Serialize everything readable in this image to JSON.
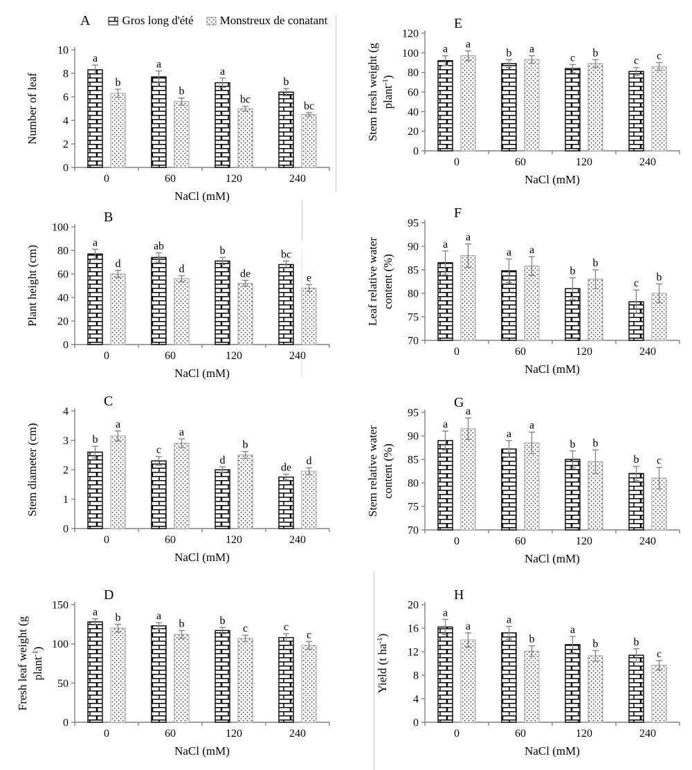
{
  "page": {
    "background": "#ffffff"
  },
  "legend": {
    "items": [
      {
        "label": "Gros long d'été",
        "pattern": "brick"
      },
      {
        "label": "Monstreux de conatant",
        "pattern": "dots"
      }
    ]
  },
  "styles": {
    "series1_fill": "brick-pattern",
    "series1_outline": "#000000",
    "series2_fill": "dots-pattern",
    "series2_outline": "#9a9a9a",
    "error_bar_color": "#7f7f7f",
    "axis_color": "#808080",
    "text_color": "#000000"
  },
  "chart_data": {
    "type": "bar",
    "categories": [
      "0",
      "60",
      "120",
      "240"
    ],
    "xlabel": "NaCl (mM)",
    "series_names": [
      "Gros long d'été",
      "Monstreux de conatant"
    ],
    "legend_position": "top-left",
    "grid": false,
    "error_bars": true,
    "panels": [
      {
        "label": "A",
        "show_letter": false,
        "ylabel_lines": [
          "Number of leaf"
        ],
        "ylim": [
          0,
          10
        ],
        "yticks": [
          0,
          2,
          4,
          6,
          8,
          10
        ],
        "series": [
          {
            "name": "Gros long d'été",
            "values": [
              8.3,
              7.7,
              7.2,
              6.4
            ],
            "errors": [
              0.4,
              0.5,
              0.4,
              0.3
            ],
            "letters": [
              "a",
              "a",
              "a",
              "b"
            ]
          },
          {
            "name": "Monstreux de conatant",
            "values": [
              6.3,
              5.6,
              5.0,
              4.5
            ],
            "errors": [
              0.35,
              0.3,
              0.2,
              0.15
            ],
            "letters": [
              "b",
              "b",
              "bc",
              "bc"
            ]
          }
        ]
      },
      {
        "label": "B",
        "show_letter": true,
        "ylabel_lines": [
          "Plant height (cm)"
        ],
        "ylim": [
          0,
          100
        ],
        "yticks": [
          0,
          20,
          40,
          60,
          80,
          100
        ],
        "series": [
          {
            "name": "Gros long d'été",
            "values": [
              77,
              74,
              71,
              68
            ],
            "errors": [
              4,
              4,
              3,
              3
            ],
            "letters": [
              "a",
              "ab",
              "b",
              "bc"
            ]
          },
          {
            "name": "Monstreux de conatant",
            "values": [
              60,
              56,
              52,
              48
            ],
            "errors": [
              3,
              2.5,
              2.5,
              3
            ],
            "letters": [
              "d",
              "d",
              "de",
              "e"
            ]
          }
        ]
      },
      {
        "label": "C",
        "show_letter": true,
        "ylabel_lines": [
          "Stem diameter (cm)"
        ],
        "ylim": [
          0,
          4
        ],
        "yticks": [
          0,
          1,
          2,
          3,
          4
        ],
        "series": [
          {
            "name": "Gros long d'été",
            "values": [
              2.6,
              2.3,
              2.0,
              1.75
            ],
            "errors": [
              0.2,
              0.15,
              0.1,
              0.1
            ],
            "letters": [
              "b",
              "c",
              "d",
              "de"
            ]
          },
          {
            "name": "Monstreux de conatant",
            "values": [
              3.15,
              2.9,
              2.5,
              1.95
            ],
            "errors": [
              0.17,
              0.15,
              0.12,
              0.12
            ],
            "letters": [
              "a",
              "a",
              "b",
              "d"
            ]
          }
        ]
      },
      {
        "label": "D",
        "show_letter": true,
        "ylabel_lines": [
          "Fresh leaf weight (g",
          "plant⁻¹)"
        ],
        "ylim": [
          0,
          150
        ],
        "yticks": [
          0,
          50,
          100,
          150
        ],
        "series": [
          {
            "name": "Gros long d'été",
            "values": [
              128,
              123,
              117,
              108
            ],
            "errors": [
              4,
              4,
              4,
              5
            ],
            "letters": [
              "a",
              "a",
              "b",
              "c"
            ]
          },
          {
            "name": "Monstreux de conatant",
            "values": [
              120,
              112,
              107,
              98
            ],
            "errors": [
              5,
              5,
              4,
              5
            ],
            "letters": [
              "b",
              "b",
              "c",
              "c"
            ]
          }
        ]
      },
      {
        "label": "E",
        "show_letter": true,
        "ylabel_lines": [
          "Stem fresh weight (g",
          "plant⁻¹)"
        ],
        "ylim": [
          0,
          120
        ],
        "yticks": [
          0,
          20,
          40,
          60,
          80,
          100,
          120
        ],
        "series": [
          {
            "name": "Gros long d'été",
            "values": [
              92,
              89,
              84,
              81
            ],
            "errors": [
              5,
              4,
              4,
              4
            ],
            "letters": [
              "a",
              "b",
              "c",
              "c"
            ]
          },
          {
            "name": "Monstreux de conatant",
            "values": [
              97,
              93,
              89,
              86
            ],
            "errors": [
              5,
              4,
              4,
              4
            ],
            "letters": [
              "a",
              "a",
              "b",
              "c"
            ]
          }
        ]
      },
      {
        "label": "F",
        "show_letter": true,
        "ylabel_lines": [
          "Leaf relative water",
          "content (%)"
        ],
        "ylim": [
          70,
          95
        ],
        "yticks": [
          70,
          75,
          80,
          85,
          90,
          95
        ],
        "series": [
          {
            "name": "Gros long d'été",
            "values": [
              86.5,
              84.8,
              81,
              78.2
            ],
            "errors": [
              2.5,
              2.5,
              2.3,
              2.5
            ],
            "letters": [
              "a",
              "a",
              "b",
              "c"
            ]
          },
          {
            "name": "Monstreux de conatant",
            "values": [
              88,
              85.8,
              83,
              80
            ],
            "errors": [
              2.5,
              2,
              2,
              2
            ],
            "letters": [
              "a",
              "a",
              "b",
              "b"
            ]
          }
        ]
      },
      {
        "label": "G",
        "show_letter": true,
        "ylabel_lines": [
          "Stem relative water",
          "content (%)"
        ],
        "ylim": [
          70,
          95
        ],
        "yticks": [
          70,
          75,
          80,
          85,
          90,
          95
        ],
        "series": [
          {
            "name": "Gros long d'été",
            "values": [
              89,
              87.2,
              85,
              82
            ],
            "errors": [
              2,
              1.8,
              1.8,
              1.5
            ],
            "letters": [
              "a",
              "a",
              "b",
              "b"
            ]
          },
          {
            "name": "Monstreux de conatant",
            "values": [
              91.5,
              88.5,
              84.5,
              81
            ],
            "errors": [
              2.3,
              2.3,
              2.5,
              2.3
            ],
            "letters": [
              "a",
              "a",
              "b",
              "c"
            ]
          }
        ]
      },
      {
        "label": "H",
        "show_letter": true,
        "ylabel_lines": [
          "Yield (t ha⁻¹)"
        ],
        "ylim": [
          0,
          20
        ],
        "yticks": [
          0,
          4,
          8,
          12,
          16,
          20
        ],
        "series": [
          {
            "name": "Gros long d'été",
            "values": [
              16.2,
              15.2,
              13.2,
              11.4
            ],
            "errors": [
              1.3,
              1.1,
              1.4,
              1.1
            ],
            "letters": [
              "a",
              "a",
              "a",
              "b"
            ]
          },
          {
            "name": "Monstreux de conatant",
            "values": [
              14.0,
              12.1,
              11.3,
              9.7
            ],
            "errors": [
              1.2,
              0.9,
              0.9,
              0.8
            ],
            "letters": [
              "a",
              "b",
              "b",
              "c"
            ]
          }
        ]
      }
    ]
  }
}
